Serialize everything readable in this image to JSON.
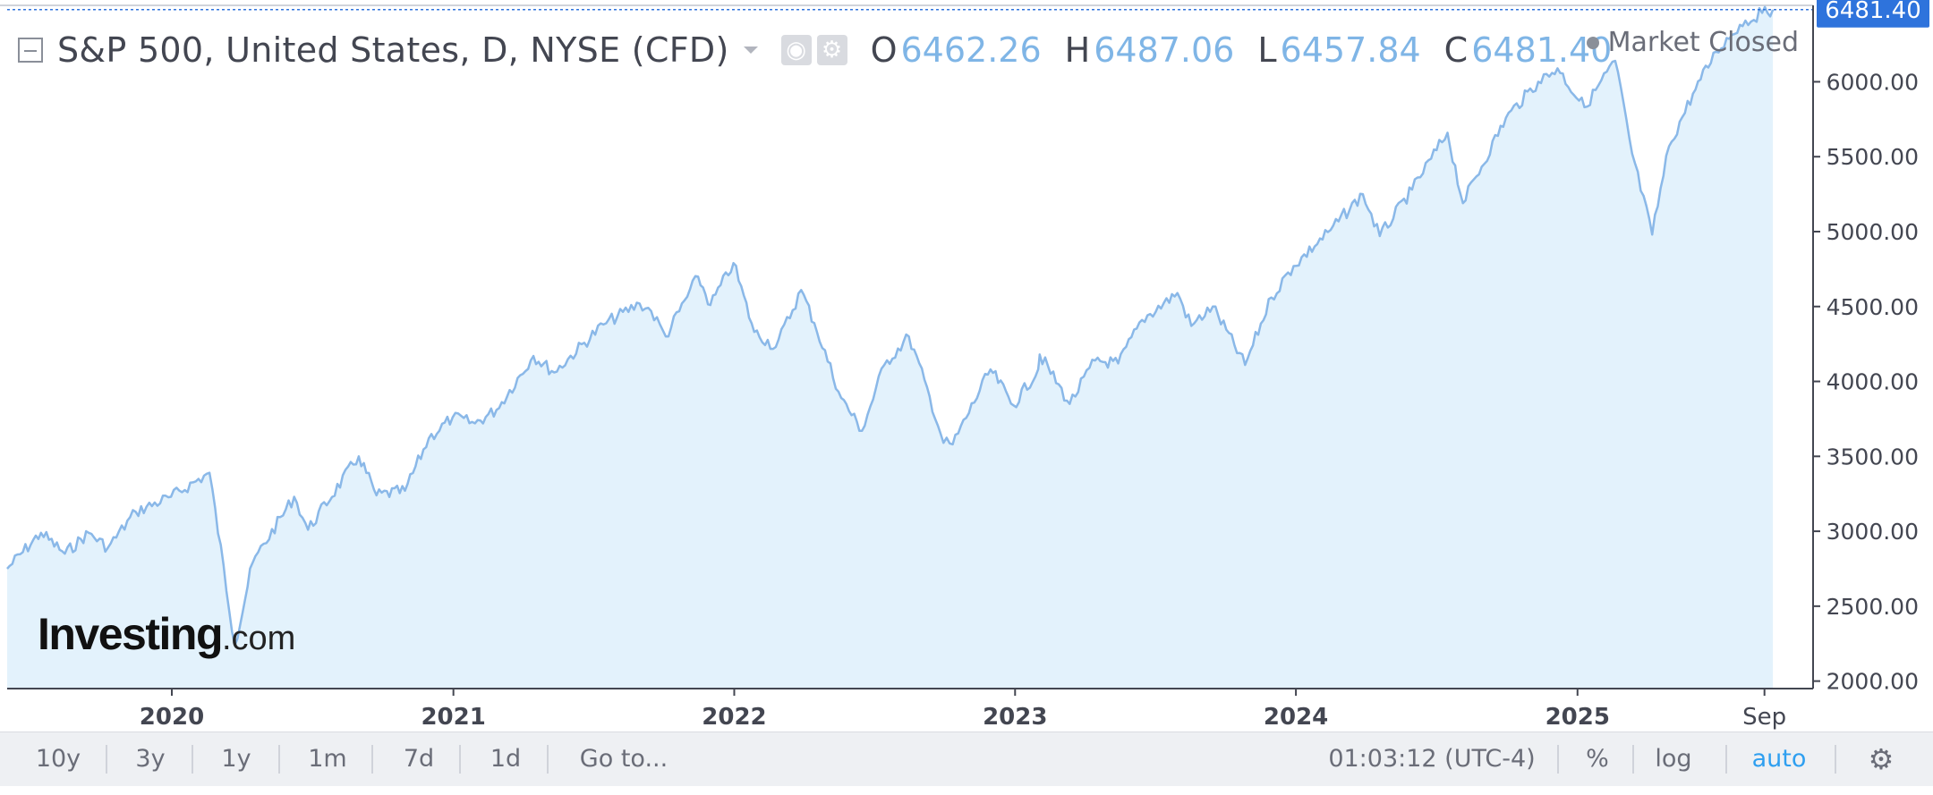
{
  "header": {
    "title": "S&P 500, United States, D, NYSE (CFD)",
    "icons": [
      "eye-icon",
      "gear-icon"
    ],
    "ohlc": [
      {
        "label": "O",
        "value": "6462.26"
      },
      {
        "label": "H",
        "value": "6487.06"
      },
      {
        "label": "L",
        "value": "6457.84"
      },
      {
        "label": "C",
        "value": "6481.40"
      }
    ],
    "market_status": "Market Closed"
  },
  "logo": {
    "main": "Investing",
    "suffix": ".com"
  },
  "price_tag": "6481.40",
  "toolbar": {
    "ranges": [
      "10y",
      "3y",
      "1y",
      "1m",
      "7d",
      "1d"
    ],
    "goto": "Go to...",
    "clock": "01:03:12 (UTC-4)",
    "percent": "%",
    "log": "log",
    "auto": "auto",
    "settings_icon": "gear-icon"
  },
  "colors": {
    "line": "#8ab8e8",
    "area": "#e3f2fc",
    "price_tag_bg": "#2e73dc",
    "active": "#2e9ff0"
  },
  "chart_data": {
    "type": "area",
    "title": "S&P 500, United States, D, NYSE (CFD)",
    "xlabel": "",
    "ylabel": "",
    "x_ticks": [
      "2020",
      "2021",
      "2022",
      "2023",
      "2024",
      "2025",
      "Sep"
    ],
    "y_ticks": [
      "2000.00",
      "2500.00",
      "3000.00",
      "3500.00",
      "4000.00",
      "4500.00",
      "5000.00",
      "5500.00",
      "6000.00"
    ],
    "ylim": [
      1950,
      6510
    ],
    "xlim": [
      "2019-06-01",
      "2025-09-13"
    ],
    "last_value": 6481.4,
    "grid": false,
    "series": [
      {
        "x": [
          "2019-06-01",
          "2019-07-15",
          "2019-08-15",
          "2019-09-15",
          "2019-10-10",
          "2019-11-15",
          "2019-12-31",
          "2020-02-19",
          "2020-03-23",
          "2020-04-15",
          "2020-06-08",
          "2020-06-26",
          "2020-08-31",
          "2020-09-23",
          "2020-10-30",
          "2020-11-30",
          "2020-12-31",
          "2021-01-29",
          "2021-02-26",
          "2021-04-15",
          "2021-05-12",
          "2021-07-15",
          "2021-08-31",
          "2021-09-15",
          "2021-10-04",
          "2021-11-15",
          "2021-12-01",
          "2021-12-31",
          "2022-01-27",
          "2022-02-24",
          "2022-03-29",
          "2022-04-15",
          "2022-05-20",
          "2022-06-16",
          "2022-07-15",
          "2022-08-16",
          "2022-09-12",
          "2022-09-30",
          "2022-10-12",
          "2022-11-30",
          "2022-12-30",
          "2023-01-31",
          "2023-02-02",
          "2023-03-13",
          "2023-04-15",
          "2023-05-15",
          "2023-06-15",
          "2023-07-31",
          "2023-08-18",
          "2023-09-15",
          "2023-10-27",
          "2023-11-30",
          "2023-12-29",
          "2024-02-15",
          "2024-03-28",
          "2024-04-19",
          "2024-05-31",
          "2024-07-16",
          "2024-08-05",
          "2024-09-30",
          "2024-11-11",
          "2024-12-06",
          "2025-01-10",
          "2025-02-19",
          "2025-03-13",
          "2025-04-08",
          "2025-04-30",
          "2025-05-31",
          "2025-06-30",
          "2025-07-31",
          "2025-08-29",
          "2025-09-12"
        ],
        "y": [
          2750,
          2990,
          2850,
          2990,
          2890,
          3130,
          3230,
          3390,
          2240,
          2790,
          3230,
          3010,
          3500,
          3240,
          3270,
          3620,
          3760,
          3720,
          3810,
          4170,
          4060,
          4380,
          4520,
          4470,
          4300,
          4700,
          4510,
          4790,
          4330,
          4230,
          4610,
          4390,
          3890,
          3670,
          4110,
          4300,
          3900,
          3590,
          3580,
          4080,
          3840,
          4080,
          4180,
          3850,
          4140,
          4120,
          4410,
          4590,
          4370,
          4500,
          4110,
          4560,
          4770,
          5010,
          5250,
          4970,
          5280,
          5660,
          5190,
          5760,
          6000,
          6090,
          5830,
          6140,
          5520,
          4980,
          5570,
          5920,
          6200,
          6380,
          6460,
          6481
        ]
      }
    ]
  }
}
